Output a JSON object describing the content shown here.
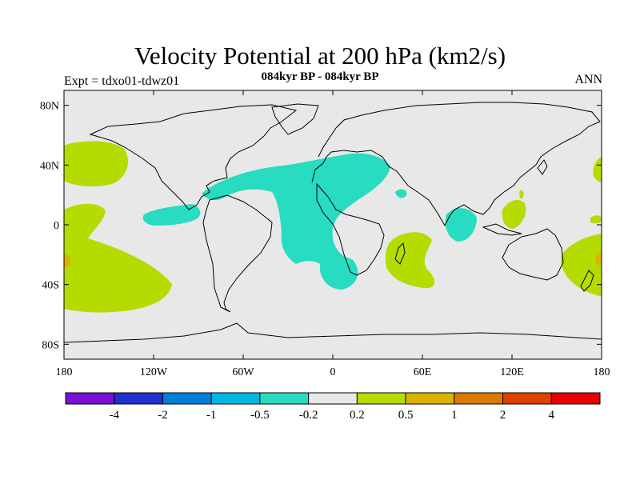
{
  "title": "Velocity Potential at 200 hPa (km2/s)",
  "subtitle": "084kyr BP - 084kyr BP",
  "left_label": "Expt = tdxo01-tdwz01",
  "right_label": "ANN",
  "map": {
    "type": "filled contour map",
    "projection": "cylindrical equidistant",
    "lon_range": [
      -180,
      180
    ],
    "lat_range": [
      -90,
      90
    ],
    "y_ticks": [
      "80N",
      "40N",
      "0",
      "40S",
      "80S"
    ],
    "x_ticks": [
      "180",
      "120W",
      "60W",
      "0",
      "60E",
      "120E",
      "180"
    ]
  },
  "colorbar": {
    "labels": [
      "-4",
      "-2",
      "-1",
      "-0.5",
      "-0.2",
      "0.2",
      "0.5",
      "1",
      "2",
      "4"
    ],
    "colors": [
      "#7a10d6",
      "#1f2fd0",
      "#0080d8",
      "#00b8e0",
      "#27dcc0",
      "#e8e8e8",
      "#b4dc00",
      "#dcb400",
      "#dc7a00",
      "#e04000",
      "#e80000"
    ]
  },
  "colors": {
    "background_field": "#e8e8e8",
    "positive_region": "#b4dc00",
    "negative_region": "#27dcc0",
    "strong_positive": "#dcb400"
  }
}
